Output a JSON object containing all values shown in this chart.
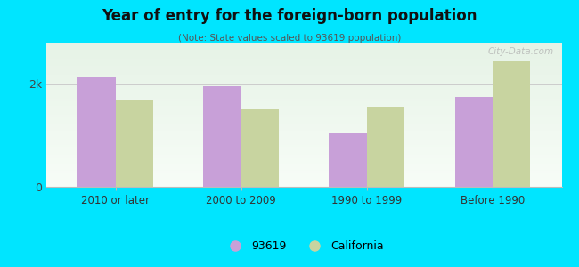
{
  "title": "Year of entry for the foreign-born population",
  "subtitle": "(Note: State values scaled to 93619 population)",
  "categories": [
    "2010 or later",
    "2000 to 2009",
    "1990 to 1999",
    "Before 1990"
  ],
  "values_93619": [
    2150,
    1950,
    1050,
    1750
  ],
  "values_california": [
    1700,
    1500,
    1550,
    2450
  ],
  "color_93619": "#c8a0d8",
  "color_california": "#c8d4a0",
  "background_outer": "#00e5ff",
  "ylim": [
    0,
    2800
  ],
  "yticks": [
    0,
    2000
  ],
  "ytick_labels": [
    "0",
    "2k"
  ],
  "legend_label_1": "93619",
  "legend_label_2": "California",
  "bar_width": 0.3,
  "watermark": "City-Data.com"
}
